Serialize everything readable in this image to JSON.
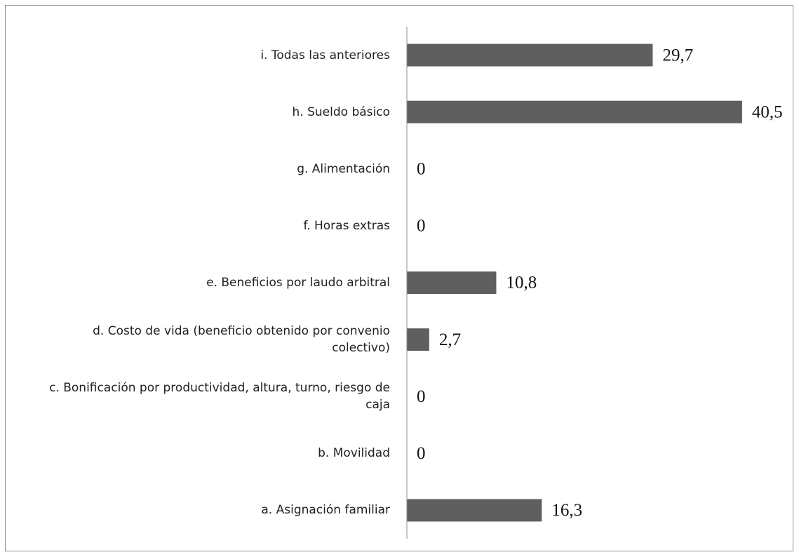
{
  "chart_data": {
    "type": "barh",
    "categories": [
      "a. Asignación familiar",
      "b. Movilidad",
      "c. Bonificación por productividad, altura, turno, riesgo de caja",
      "d. Costo de vida (beneficio obtenido por convenio colectivo)",
      "e. Beneficios por laudo arbitral",
      "f. Horas extras",
      "g. Alimentación",
      "h. Sueldo básico",
      "i. Todas las anteriores"
    ],
    "values": [
      16.3,
      0,
      0,
      2.7,
      10.8,
      0,
      0,
      40.5,
      29.7
    ],
    "value_labels": [
      "16,3",
      "0",
      "0",
      "2,7",
      "10,8",
      "0",
      "0",
      "40,5",
      "29,7"
    ],
    "color": "#5f5f5f",
    "xlim": [
      0,
      45
    ]
  }
}
